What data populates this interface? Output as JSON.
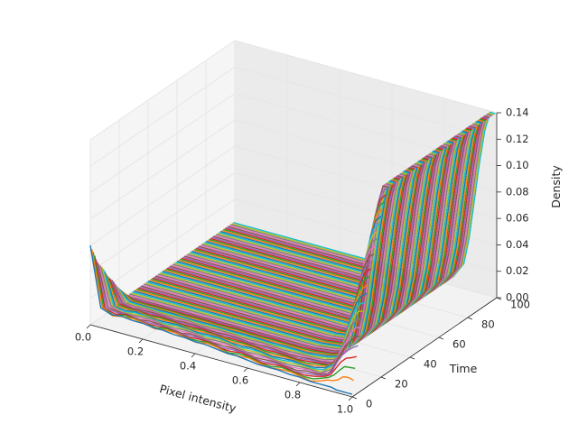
{
  "chart_data": {
    "type": "line",
    "projection": "3d",
    "xlabel": "Pixel intensity",
    "ylabel": "Time",
    "zlabel": "Density",
    "xlim": [
      0.0,
      1.0
    ],
    "ylim": [
      0,
      100
    ],
    "zlim": [
      0.0,
      0.14
    ],
    "x_ticks": [
      "0.0",
      "0.2",
      "0.4",
      "0.6",
      "0.8",
      "1.0"
    ],
    "y_ticks": [
      "0",
      "20",
      "40",
      "60",
      "80",
      "100"
    ],
    "z_ticks": [
      "0.00",
      "0.02",
      "0.04",
      "0.06",
      "0.08",
      "0.10",
      "0.12",
      "0.14"
    ],
    "grid": true,
    "legend": "none",
    "series_count": 100,
    "time_start": 0,
    "time_step": 1,
    "x_samples": [
      0.0,
      0.04,
      0.08,
      0.12,
      0.16,
      0.2,
      0.24,
      0.28,
      0.32,
      0.36,
      0.4,
      0.44,
      0.48,
      0.52,
      0.56,
      0.6,
      0.64,
      0.68,
      0.72,
      0.76,
      0.8,
      0.84,
      0.88,
      0.9,
      0.92,
      0.94,
      0.96,
      0.98,
      1.0
    ],
    "series_initial_density": [
      0.06,
      0.015,
      0.012,
      0.013,
      0.012,
      0.012,
      0.011,
      0.011,
      0.01,
      0.01,
      0.009,
      0.009,
      0.008,
      0.007,
      0.007,
      0.006,
      0.005,
      0.005,
      0.005,
      0.004,
      0.004,
      0.003,
      0.003,
      0.003,
      0.003,
      0.002,
      0.002,
      0.002,
      0.002
    ],
    "series_late_density": [
      0.003,
      0.003,
      0.003,
      0.003,
      0.003,
      0.003,
      0.003,
      0.003,
      0.003,
      0.003,
      0.003,
      0.003,
      0.003,
      0.003,
      0.003,
      0.003,
      0.003,
      0.003,
      0.003,
      0.004,
      0.005,
      0.008,
      0.02,
      0.04,
      0.07,
      0.1,
      0.125,
      0.14,
      0.145
    ],
    "colors": [
      "#1f77b4",
      "#ff7f0e",
      "#2ca02c",
      "#d62728",
      "#9467bd",
      "#8c564b",
      "#e377c2",
      "#7f7f7f",
      "#bcbd22",
      "#17becf"
    ]
  }
}
